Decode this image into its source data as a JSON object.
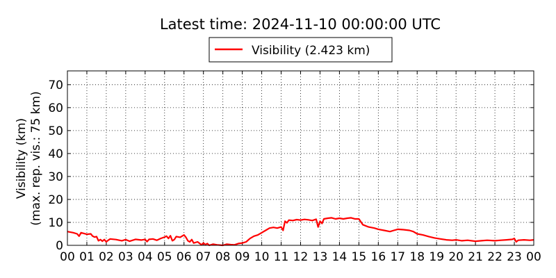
{
  "chart_data": {
    "type": "line",
    "title": "Latest time: 2024-11-10 00:00:00 UTC",
    "ylabel_line1": "Visibility (km)",
    "ylabel_line2": "(max. rep. vis.: 75 km)",
    "xlabel": "",
    "xlim": [
      0,
      24
    ],
    "ylim": [
      0,
      76
    ],
    "grid": true,
    "legend_position": "top-center",
    "x_ticks": [
      0,
      1,
      2,
      3,
      4,
      5,
      6,
      7,
      8,
      9,
      10,
      11,
      12,
      13,
      14,
      15,
      16,
      17,
      18,
      19,
      20,
      21,
      22,
      23,
      24
    ],
    "x_tick_labels": [
      "00",
      "01",
      "02",
      "03",
      "04",
      "05",
      "06",
      "07",
      "08",
      "09",
      "10",
      "11",
      "12",
      "13",
      "14",
      "15",
      "16",
      "17",
      "18",
      "19",
      "20",
      "21",
      "22",
      "23",
      "00"
    ],
    "y_ticks": [
      0,
      10,
      20,
      30,
      40,
      50,
      60,
      70
    ],
    "y_tick_labels": [
      "0",
      "10",
      "20",
      "30",
      "40",
      "50",
      "60",
      "70"
    ],
    "series": [
      {
        "name": "Visibility (2.423 km)",
        "color": "#ff0000",
        "x": [
          0,
          0.3,
          0.5,
          0.6,
          0.7,
          1.0,
          1.2,
          1.3,
          1.4,
          1.5,
          1.6,
          1.7,
          1.8,
          1.9,
          2.0,
          2.1,
          2.2,
          2.5,
          2.8,
          3.0,
          3.2,
          3.5,
          3.8,
          4.0,
          4.1,
          4.2,
          4.4,
          4.6,
          4.8,
          5.0,
          5.1,
          5.2,
          5.3,
          5.4,
          5.5,
          5.6,
          5.8,
          6.0,
          6.1,
          6.2,
          6.3,
          6.4,
          6.5,
          6.7,
          6.9,
          7.0,
          7.1,
          7.2,
          7.3,
          7.5,
          7.7,
          8.0,
          8.2,
          8.4,
          8.6,
          8.8,
          9.0,
          9.2,
          9.4,
          9.6,
          9.8,
          10.0,
          10.2,
          10.4,
          10.6,
          10.8,
          11.0,
          11.1,
          11.2,
          11.3,
          11.4,
          11.6,
          11.8,
          12.0,
          12.2,
          12.4,
          12.6,
          12.8,
          12.9,
          13.0,
          13.1,
          13.2,
          13.4,
          13.6,
          13.8,
          14.0,
          14.2,
          14.4,
          14.6,
          14.8,
          15.0,
          15.2,
          15.5,
          15.8,
          16.0,
          16.3,
          16.6,
          16.8,
          17.0,
          17.3,
          17.6,
          17.8,
          18.0,
          18.3,
          18.6,
          18.9,
          19.2,
          19.5,
          19.8,
          20.0,
          20.3,
          20.6,
          21.0,
          21.3,
          21.6,
          22.0,
          22.3,
          22.6,
          22.9,
          23.0,
          23.1,
          23.2,
          23.5,
          23.8,
          24.0
        ],
        "values": [
          6,
          5.5,
          5,
          4,
          5.5,
          4.8,
          5.0,
          4,
          3.6,
          3.8,
          2,
          2.5,
          1.8,
          2.5,
          1.5,
          2.2,
          2.8,
          2.5,
          2.0,
          2.5,
          1.8,
          2.6,
          2.3,
          2.6,
          1.6,
          2.6,
          2.8,
          2.2,
          3.0,
          3.6,
          4.0,
          3.0,
          4.2,
          2.0,
          2.5,
          3.8,
          3.5,
          4.5,
          3.5,
          2.0,
          1.5,
          2.5,
          1.0,
          1.5,
          0.2,
          1.0,
          0.3,
          0.8,
          0,
          0.5,
          0.2,
          0,
          0.5,
          0.3,
          0.2,
          0.8,
          1.0,
          1.5,
          3.0,
          4.0,
          4.5,
          5.5,
          6.5,
          7.5,
          7.8,
          7.5,
          8.0,
          6.5,
          10.5,
          9.8,
          11.0,
          10.8,
          11.2,
          11.0,
          11.3,
          11.1,
          10.8,
          11.4,
          8.0,
          10.5,
          9.5,
          11.5,
          11.8,
          12.0,
          11.5,
          11.8,
          11.5,
          11.8,
          12.0,
          11.5,
          11.5,
          9.0,
          8.0,
          7.5,
          7.0,
          6.5,
          6.0,
          6.5,
          7.0,
          6.8,
          6.5,
          6.0,
          5.0,
          4.5,
          3.8,
          3.2,
          2.8,
          2.4,
          2.2,
          2.4,
          2.0,
          2.2,
          1.8,
          2.0,
          2.2,
          2.0,
          2.2,
          2.4,
          2.6,
          3.0,
          1.5,
          2.2,
          2.4,
          2.2,
          2.4
        ]
      }
    ]
  }
}
